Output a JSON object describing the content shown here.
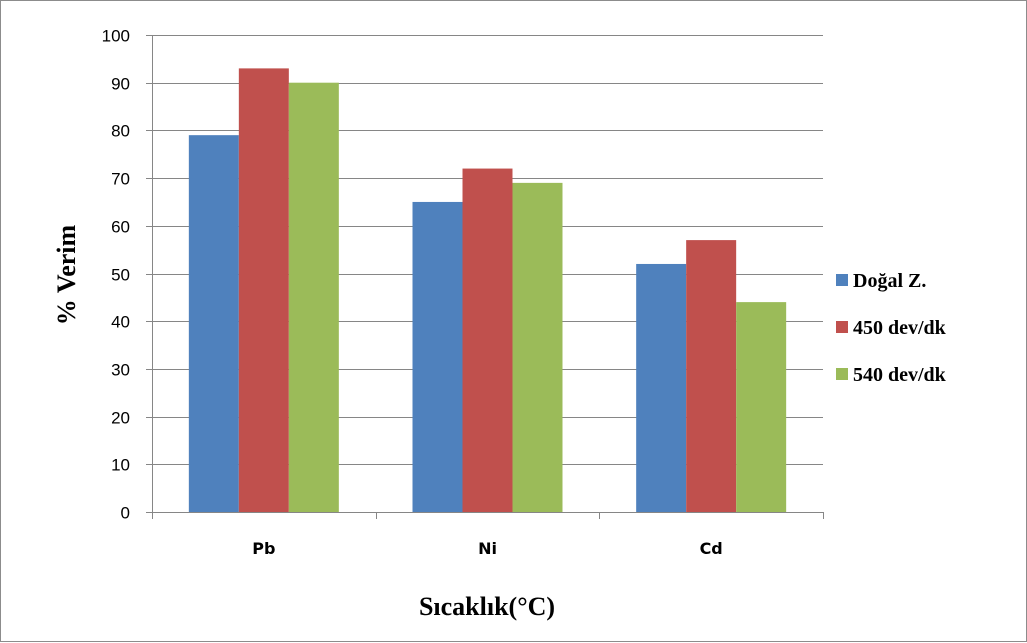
{
  "chart_data": {
    "type": "bar",
    "categories": [
      "Pb",
      "Ni",
      "Cd"
    ],
    "series": [
      {
        "name": "Doğal Z.",
        "color": "#4f81bd",
        "values": [
          79,
          65,
          52
        ]
      },
      {
        "name": "450 dev/dk",
        "color": "#c0504d",
        "values": [
          93,
          72,
          57
        ]
      },
      {
        "name": "540 dev/dk",
        "color": "#9bbb59",
        "values": [
          90,
          69,
          44
        ]
      }
    ],
    "title": "",
    "xlabel": "Sıcaklık(°C)",
    "ylabel": "% Verim",
    "ylim": [
      0,
      100
    ],
    "ytick_step": 10,
    "grid": true,
    "legend_position": "right"
  }
}
